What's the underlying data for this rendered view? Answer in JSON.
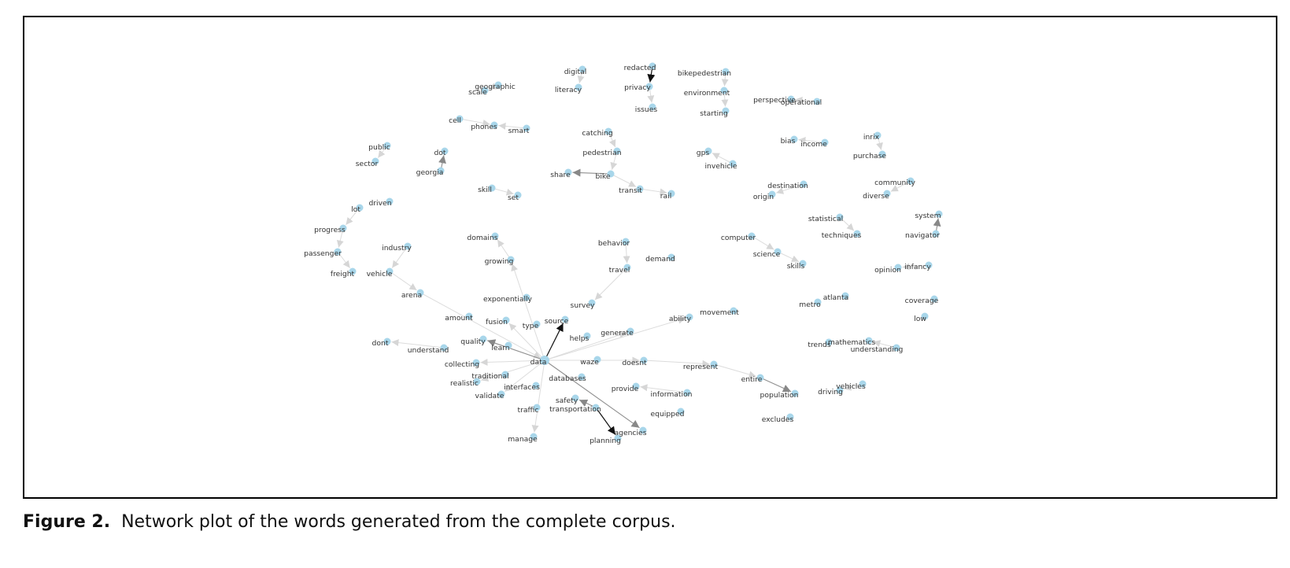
{
  "caption": {
    "label": "Figure 2.",
    "text": "Network plot of the words generated from the complete corpus."
  },
  "network": {
    "nodes": [
      {
        "id": "redacted",
        "label": "redacted"
      },
      {
        "id": "privacy",
        "label": "privacy"
      },
      {
        "id": "issues",
        "label": "issues"
      },
      {
        "id": "digital",
        "label": "digital"
      },
      {
        "id": "literacy",
        "label": "literacy"
      },
      {
        "id": "scale",
        "label": "scale"
      },
      {
        "id": "geographic",
        "label": "geographic"
      },
      {
        "id": "bikepedestrian",
        "label": "bikepedestrian"
      },
      {
        "id": "environment",
        "label": "environment"
      },
      {
        "id": "starting",
        "label": "starting"
      },
      {
        "id": "perspective",
        "label": "perspective"
      },
      {
        "id": "operational",
        "label": "operational"
      },
      {
        "id": "cell",
        "label": "cell"
      },
      {
        "id": "phones",
        "label": "phones"
      },
      {
        "id": "smart",
        "label": "smart"
      },
      {
        "id": "catching",
        "label": "catching"
      },
      {
        "id": "pedestrian",
        "label": "pedestrian"
      },
      {
        "id": "share",
        "label": "share"
      },
      {
        "id": "bike",
        "label": "bike"
      },
      {
        "id": "transit",
        "label": "transit"
      },
      {
        "id": "rail",
        "label": "rail"
      },
      {
        "id": "public",
        "label": "public"
      },
      {
        "id": "sector",
        "label": "sector"
      },
      {
        "id": "dot",
        "label": "dot"
      },
      {
        "id": "georgia",
        "label": "georgia"
      },
      {
        "id": "gps",
        "label": "gps"
      },
      {
        "id": "invehicle",
        "label": "invehicle"
      },
      {
        "id": "bias",
        "label": "bias"
      },
      {
        "id": "income",
        "label": "income"
      },
      {
        "id": "inrix",
        "label": "inrix"
      },
      {
        "id": "purchase",
        "label": "purchase"
      },
      {
        "id": "skill",
        "label": "skill"
      },
      {
        "id": "set",
        "label": "set"
      },
      {
        "id": "destination",
        "label": "destination"
      },
      {
        "id": "origin",
        "label": "origin"
      },
      {
        "id": "community",
        "label": "community"
      },
      {
        "id": "diverse",
        "label": "diverse"
      },
      {
        "id": "lot",
        "label": "lot"
      },
      {
        "id": "driven",
        "label": "driven"
      },
      {
        "id": "progress",
        "label": "progress"
      },
      {
        "id": "passenger",
        "label": "passenger"
      },
      {
        "id": "freight",
        "label": "freight"
      },
      {
        "id": "vehicle",
        "label": "vehicle"
      },
      {
        "id": "industry",
        "label": "industry"
      },
      {
        "id": "arena",
        "label": "arena"
      },
      {
        "id": "statistical",
        "label": "statistical"
      },
      {
        "id": "techniques",
        "label": "techniques"
      },
      {
        "id": "system",
        "label": "system"
      },
      {
        "id": "navigator",
        "label": "navigator"
      },
      {
        "id": "domains",
        "label": "domains"
      },
      {
        "id": "growing",
        "label": "growing"
      },
      {
        "id": "exponentially",
        "label": "exponentially"
      },
      {
        "id": "behavior",
        "label": "behavior"
      },
      {
        "id": "demand",
        "label": "demand"
      },
      {
        "id": "travel",
        "label": "travel"
      },
      {
        "id": "survey",
        "label": "survey"
      },
      {
        "id": "computer",
        "label": "computer"
      },
      {
        "id": "science",
        "label": "science"
      },
      {
        "id": "skills",
        "label": "skills"
      },
      {
        "id": "opinion",
        "label": "opinion"
      },
      {
        "id": "infancy",
        "label": "infancy"
      },
      {
        "id": "metro",
        "label": "metro"
      },
      {
        "id": "atlanta",
        "label": "atlanta"
      },
      {
        "id": "coverage",
        "label": "coverage"
      },
      {
        "id": "low",
        "label": "low"
      },
      {
        "id": "amount",
        "label": "amount"
      },
      {
        "id": "fusion",
        "label": "fusion"
      },
      {
        "id": "type",
        "label": "type"
      },
      {
        "id": "source",
        "label": "source"
      },
      {
        "id": "movement",
        "label": "movement"
      },
      {
        "id": "ability",
        "label": "ability"
      },
      {
        "id": "generate",
        "label": "generate"
      },
      {
        "id": "helps",
        "label": "helps"
      },
      {
        "id": "dont",
        "label": "dont"
      },
      {
        "id": "understand",
        "label": "understand"
      },
      {
        "id": "quality",
        "label": "quality"
      },
      {
        "id": "learn",
        "label": "learn"
      },
      {
        "id": "trends",
        "label": "trends"
      },
      {
        "id": "mathematics",
        "label": "mathematics"
      },
      {
        "id": "understanding",
        "label": "understanding"
      },
      {
        "id": "collecting",
        "label": "collecting"
      },
      {
        "id": "data",
        "label": "data"
      },
      {
        "id": "waze",
        "label": "waze"
      },
      {
        "id": "doesnt",
        "label": "doesnt"
      },
      {
        "id": "represent",
        "label": "represent"
      },
      {
        "id": "traditional",
        "label": "traditional"
      },
      {
        "id": "realistic",
        "label": "realistic"
      },
      {
        "id": "interfaces",
        "label": "interfaces"
      },
      {
        "id": "databases",
        "label": "databases"
      },
      {
        "id": "entire",
        "label": "entire"
      },
      {
        "id": "provide",
        "label": "provide"
      },
      {
        "id": "information",
        "label": "information"
      },
      {
        "id": "validate",
        "label": "validate"
      },
      {
        "id": "population",
        "label": "population"
      },
      {
        "id": "driving",
        "label": "driving"
      },
      {
        "id": "vehicles",
        "label": "vehicles"
      },
      {
        "id": "safety",
        "label": "safety"
      },
      {
        "id": "transportation",
        "label": "transportation"
      },
      {
        "id": "traffic",
        "label": "traffic"
      },
      {
        "id": "equipped",
        "label": "equipped"
      },
      {
        "id": "agencies",
        "label": "agencies"
      },
      {
        "id": "planning",
        "label": "planning"
      },
      {
        "id": "excludes",
        "label": "excludes"
      },
      {
        "id": "manage",
        "label": "manage"
      }
    ],
    "edges": [
      {
        "source": "redacted",
        "target": "privacy",
        "weight": "strong"
      },
      {
        "source": "privacy",
        "target": "issues",
        "weight": "light"
      },
      {
        "source": "digital",
        "target": "literacy",
        "weight": "light"
      },
      {
        "source": "geographic",
        "target": "scale",
        "weight": "light"
      },
      {
        "source": "bikepedestrian",
        "target": "environment",
        "weight": "light"
      },
      {
        "source": "environment",
        "target": "starting",
        "weight": "light"
      },
      {
        "source": "operational",
        "target": "perspective",
        "weight": "light"
      },
      {
        "source": "cell",
        "target": "phones",
        "weight": "light"
      },
      {
        "source": "smart",
        "target": "phones",
        "weight": "light"
      },
      {
        "source": "catching",
        "target": "pedestrian",
        "weight": "light"
      },
      {
        "source": "pedestrian",
        "target": "bike",
        "weight": "light"
      },
      {
        "source": "bike",
        "target": "share",
        "weight": "medium"
      },
      {
        "source": "bike",
        "target": "transit",
        "weight": "light"
      },
      {
        "source": "transit",
        "target": "rail",
        "weight": "light"
      },
      {
        "source": "public",
        "target": "sector",
        "weight": "light"
      },
      {
        "source": "georgia",
        "target": "dot",
        "weight": "medium"
      },
      {
        "source": "invehicle",
        "target": "gps",
        "weight": "light"
      },
      {
        "source": "income",
        "target": "bias",
        "weight": "light"
      },
      {
        "source": "inrix",
        "target": "purchase",
        "weight": "light"
      },
      {
        "source": "skill",
        "target": "set",
        "weight": "light"
      },
      {
        "source": "destination",
        "target": "origin",
        "weight": "light"
      },
      {
        "source": "community",
        "target": "diverse",
        "weight": "light"
      },
      {
        "source": "lot",
        "target": "progress",
        "weight": "light"
      },
      {
        "source": "progress",
        "target": "passenger",
        "weight": "light"
      },
      {
        "source": "passenger",
        "target": "freight",
        "weight": "light"
      },
      {
        "source": "industry",
        "target": "vehicle",
        "weight": "light"
      },
      {
        "source": "vehicle",
        "target": "arena",
        "weight": "light"
      },
      {
        "source": "arena",
        "target": "data",
        "weight": "light"
      },
      {
        "source": "statistical",
        "target": "techniques",
        "weight": "light"
      },
      {
        "source": "navigator",
        "target": "system",
        "weight": "medium"
      },
      {
        "source": "growing",
        "target": "domains",
        "weight": "light"
      },
      {
        "source": "data",
        "target": "growing",
        "weight": "light"
      },
      {
        "source": "behavior",
        "target": "travel",
        "weight": "light"
      },
      {
        "source": "travel",
        "target": "survey",
        "weight": "light"
      },
      {
        "source": "computer",
        "target": "science",
        "weight": "light"
      },
      {
        "source": "science",
        "target": "skills",
        "weight": "light"
      },
      {
        "source": "infancy",
        "target": "opinion",
        "weight": "light"
      },
      {
        "source": "understanding",
        "target": "mathematics",
        "weight": "light"
      },
      {
        "source": "data",
        "target": "source",
        "weight": "strong"
      },
      {
        "source": "data",
        "target": "fusion",
        "weight": "light"
      },
      {
        "source": "data",
        "target": "quality",
        "weight": "medium"
      },
      {
        "source": "data",
        "target": "generate",
        "weight": "light"
      },
      {
        "source": "data",
        "target": "ability",
        "weight": "light"
      },
      {
        "source": "understand",
        "target": "dont",
        "weight": "light"
      },
      {
        "source": "data",
        "target": "collecting",
        "weight": "light"
      },
      {
        "source": "data",
        "target": "realistic",
        "weight": "light"
      },
      {
        "source": "data",
        "target": "validate",
        "weight": "light"
      },
      {
        "source": "data",
        "target": "manage",
        "weight": "light"
      },
      {
        "source": "data",
        "target": "doesnt",
        "weight": "light"
      },
      {
        "source": "doesnt",
        "target": "represent",
        "weight": "light"
      },
      {
        "source": "represent",
        "target": "entire",
        "weight": "light"
      },
      {
        "source": "entire",
        "target": "population",
        "weight": "medium"
      },
      {
        "source": "vehicles",
        "target": "driving",
        "weight": "light"
      },
      {
        "source": "data",
        "target": "agencies",
        "weight": "medium"
      },
      {
        "source": "transportation",
        "target": "safety",
        "weight": "medium"
      },
      {
        "source": "transportation",
        "target": "planning",
        "weight": "strong"
      },
      {
        "source": "information",
        "target": "provide",
        "weight": "light"
      }
    ]
  }
}
